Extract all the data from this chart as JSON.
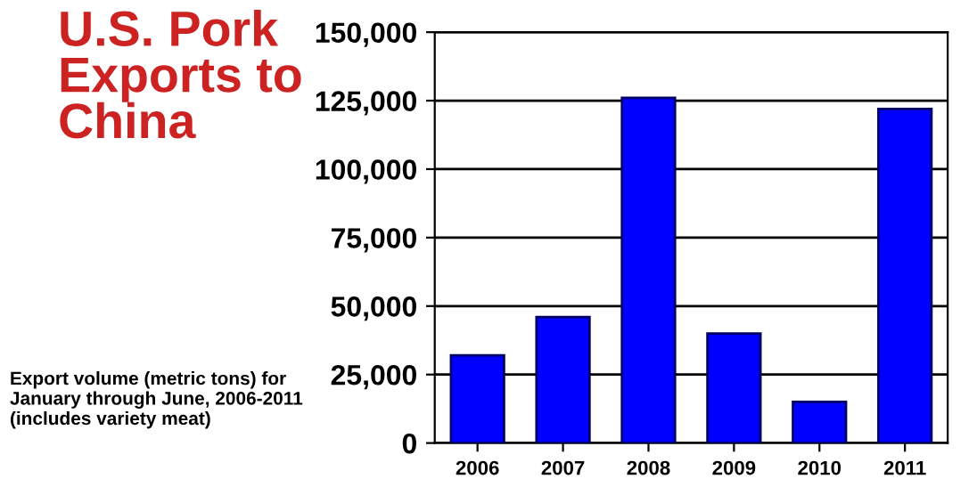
{
  "chart_data": {
    "type": "bar",
    "title": "U.S. Pork Exports to China",
    "annotations": [
      "Export volume (metric tons) for January through June, 2006-2011 (includes variety meat)"
    ],
    "categories": [
      "2006",
      "2007",
      "2008",
      "2009",
      "2010",
      "2011"
    ],
    "values": [
      32000,
      46000,
      126000,
      40000,
      15000,
      122000
    ],
    "color": "#0000ff",
    "ylim": [
      0,
      150000
    ],
    "yticks": [
      {
        "value": 0,
        "label": "0"
      },
      {
        "value": 25000,
        "label": "25,000"
      },
      {
        "value": 50000,
        "label": "50,000"
      },
      {
        "value": 75000,
        "label": "75,000"
      },
      {
        "value": 100000,
        "label": "100,000"
      },
      {
        "value": 125000,
        "label": "125,000"
      },
      {
        "value": 150000,
        "label": "150,000"
      }
    ],
    "grid": "y"
  }
}
